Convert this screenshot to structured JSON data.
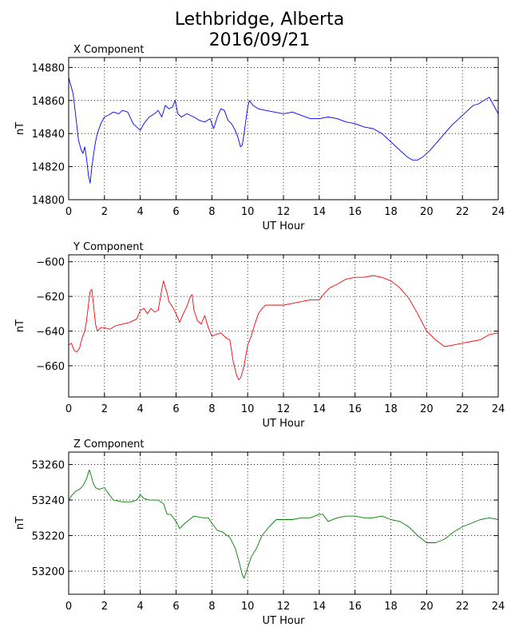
{
  "figure": {
    "title_line1": "Lethbridge, Alberta",
    "title_line2": "2016/09/21"
  },
  "chart_data": [
    {
      "type": "line",
      "title": "X Component",
      "xlabel": "UT Hour",
      "ylabel": "nT",
      "xlim": [
        0,
        24
      ],
      "ylim": [
        14800,
        14886
      ],
      "xticks": [
        0,
        2,
        4,
        6,
        8,
        10,
        12,
        14,
        16,
        18,
        20,
        22,
        24
      ],
      "yticks": [
        14800,
        14820,
        14840,
        14860,
        14880
      ],
      "grid": true,
      "series": [
        {
          "color": "#0000ff",
          "x": [
            0,
            0.1,
            0.25,
            0.4,
            0.55,
            0.7,
            0.8,
            0.9,
            1.0,
            1.1,
            1.2,
            1.3,
            1.4,
            1.5,
            1.6,
            1.8,
            2.0,
            2.2,
            2.5,
            2.8,
            3.0,
            3.3,
            3.6,
            3.8,
            4.0,
            4.2,
            4.5,
            4.8,
            5.0,
            5.2,
            5.4,
            5.6,
            5.8,
            5.95,
            6.1,
            6.3,
            6.6,
            7.0,
            7.3,
            7.6,
            7.9,
            8.1,
            8.3,
            8.5,
            8.7,
            8.9,
            9.1,
            9.3,
            9.45,
            9.6,
            9.7,
            9.8,
            9.9,
            10.0,
            10.1,
            10.3,
            10.6,
            11.0,
            11.5,
            12.0,
            12.5,
            13.0,
            13.5,
            14.0,
            14.5,
            15.0,
            15.5,
            16.0,
            16.5,
            17.0,
            17.5,
            18.0,
            18.3,
            18.6,
            18.9,
            19.2,
            19.5,
            19.8,
            20.2,
            20.6,
            21.0,
            21.4,
            21.8,
            22.2,
            22.6,
            22.9,
            23.2,
            23.5,
            23.8,
            24.0
          ],
          "y": [
            14874,
            14870,
            14864,
            14850,
            14836,
            14830,
            14828,
            14832,
            14825,
            14815,
            14810,
            14820,
            14828,
            14835,
            14840,
            14846,
            14850,
            14851,
            14853,
            14852,
            14854,
            14853,
            14846,
            14844,
            14842,
            14846,
            14850,
            14852,
            14854,
            14850,
            14857,
            14855,
            14856,
            14860,
            14852,
            14850,
            14852,
            14850,
            14848,
            14847,
            14849,
            14843,
            14850,
            14855,
            14854,
            14848,
            14846,
            14842,
            14838,
            14832,
            14833,
            14840,
            14848,
            14856,
            14860,
            14857,
            14855,
            14854,
            14853,
            14852,
            14853,
            14851,
            14849,
            14849,
            14850,
            14849,
            14847,
            14846,
            14844,
            14843,
            14840,
            14835,
            14832,
            14829,
            14826,
            14824,
            14824,
            14826,
            14830,
            14835,
            14840,
            14845,
            14849,
            14853,
            14857,
            14858,
            14860,
            14862,
            14856,
            14852
          ]
        }
      ]
    },
    {
      "type": "line",
      "title": "Y Component",
      "xlabel": "UT Hour",
      "ylabel": "nT",
      "xlim": [
        0,
        24
      ],
      "ylim": [
        -678,
        -596
      ],
      "xticks": [
        0,
        2,
        4,
        6,
        8,
        10,
        12,
        14,
        16,
        18,
        20,
        22,
        24
      ],
      "yticks": [
        -660,
        -640,
        -620,
        -600
      ],
      "grid": true,
      "series": [
        {
          "color": "#ff0000",
          "x": [
            0,
            0.15,
            0.3,
            0.45,
            0.6,
            0.75,
            0.9,
            1.0,
            1.1,
            1.2,
            1.3,
            1.4,
            1.5,
            1.6,
            1.7,
            1.8,
            2.0,
            2.3,
            2.6,
            3.0,
            3.4,
            3.8,
            4.0,
            4.2,
            4.4,
            4.6,
            4.8,
            5.0,
            5.2,
            5.3,
            5.4,
            5.5,
            5.6,
            5.8,
            6.0,
            6.2,
            6.4,
            6.6,
            6.8,
            6.9,
            7.0,
            7.2,
            7.4,
            7.6,
            7.8,
            8.0,
            8.2,
            8.5,
            8.8,
            9.0,
            9.2,
            9.4,
            9.5,
            9.6,
            9.7,
            9.8,
            9.9,
            10.0,
            10.2,
            10.4,
            10.6,
            10.8,
            11.0,
            11.5,
            12.0,
            12.5,
            13.0,
            13.5,
            14.0,
            14.3,
            14.6,
            15.0,
            15.5,
            16.0,
            16.5,
            17.0,
            17.5,
            18.0,
            18.5,
            19.0,
            19.5,
            20.0,
            20.5,
            21.0,
            21.5,
            22.0,
            22.5,
            23.0,
            23.5,
            24.0
          ],
          "y": [
            -648,
            -647,
            -651,
            -652,
            -650,
            -644,
            -640,
            -634,
            -625,
            -617,
            -616,
            -626,
            -636,
            -640,
            -639,
            -638,
            -638,
            -639,
            -637,
            -636,
            -635,
            -633,
            -628,
            -627,
            -630,
            -627,
            -629,
            -628,
            -616,
            -611,
            -615,
            -618,
            -623,
            -626,
            -630,
            -635,
            -630,
            -626,
            -620,
            -619,
            -628,
            -634,
            -636,
            -631,
            -638,
            -643,
            -642,
            -641,
            -644,
            -645,
            -658,
            -666,
            -668,
            -667,
            -664,
            -660,
            -654,
            -648,
            -643,
            -636,
            -630,
            -627,
            -625,
            -625,
            -625,
            -624,
            -623,
            -622,
            -622,
            -618,
            -615,
            -613,
            -610,
            -609,
            -609,
            -608,
            -609,
            -611,
            -615,
            -621,
            -630,
            -640,
            -645,
            -649,
            -648,
            -647,
            -646,
            -645,
            -642,
            -641
          ]
        }
      ]
    },
    {
      "type": "line",
      "title": "Z Component",
      "xlabel": "UT Hour",
      "ylabel": "nT",
      "xlim": [
        0,
        24
      ],
      "ylim": [
        53187,
        53267
      ],
      "xticks": [
        0,
        2,
        4,
        6,
        8,
        10,
        12,
        14,
        16,
        18,
        20,
        22,
        24
      ],
      "yticks": [
        53200,
        53220,
        53240,
        53260
      ],
      "grid": true,
      "series": [
        {
          "color": "#008000",
          "x": [
            0,
            0.2,
            0.4,
            0.6,
            0.8,
            1.0,
            1.15,
            1.25,
            1.35,
            1.5,
            1.7,
            2.0,
            2.2,
            2.5,
            3.0,
            3.5,
            3.8,
            4.0,
            4.2,
            4.5,
            5.0,
            5.3,
            5.5,
            5.7,
            6.0,
            6.2,
            6.5,
            7.0,
            7.5,
            7.8,
            8.0,
            8.3,
            8.6,
            9.0,
            9.3,
            9.5,
            9.7,
            9.8,
            10.0,
            10.2,
            10.5,
            10.8,
            11.2,
            11.6,
            12.0,
            12.5,
            13.0,
            13.5,
            14.0,
            14.2,
            14.5,
            15.0,
            15.5,
            16.0,
            16.5,
            17.0,
            17.5,
            18.0,
            18.5,
            19.0,
            19.5,
            20.0,
            20.5,
            21.0,
            21.5,
            22.0,
            22.5,
            23.0,
            23.5,
            24.0
          ],
          "y": [
            53240,
            53243,
            53245,
            53246,
            53248,
            53252,
            53257,
            53254,
            53250,
            53247,
            53246,
            53247,
            53244,
            53240,
            53239,
            53239,
            53240,
            53243,
            53241,
            53240,
            53240,
            53238,
            53232,
            53232,
            53228,
            53224,
            53227,
            53231,
            53230,
            53230,
            53227,
            53223,
            53222,
            53219,
            53213,
            53206,
            53198,
            53196,
            53202,
            53208,
            53213,
            53220,
            53225,
            53229,
            53229,
            53229,
            53230,
            53230,
            53232,
            53232,
            53228,
            53230,
            53231,
            53231,
            53230,
            53230,
            53231,
            53229,
            53228,
            53225,
            53220,
            53216,
            53216,
            53218,
            53222,
            53225,
            53227,
            53229,
            53230,
            53229
          ]
        }
      ]
    }
  ]
}
